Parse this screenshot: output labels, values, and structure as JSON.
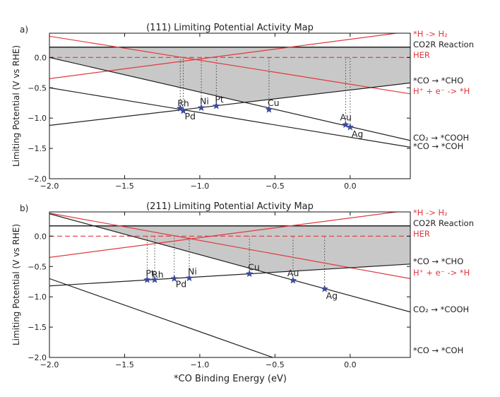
{
  "colors": {
    "shade": "#c8c8c8",
    "black_line": "#222222",
    "red_line": "#e0393e",
    "hull": "#333333",
    "star": "#3a4a9a",
    "dotted": "#444444",
    "text": "#222222"
  },
  "chart_data": [
    {
      "type": "line",
      "panel_label": "a)",
      "title": "(111) Limiting Potential Activity Map",
      "ylabel": "Limiting Potential (V vs RHE)",
      "xlabel": "",
      "xlim": [
        -2.0,
        0.4
      ],
      "ylim": [
        -2.0,
        0.4
      ],
      "xticks": [
        -2.0,
        -1.5,
        -1.0,
        -0.5,
        0.0
      ],
      "xtick_labels": [
        "−2.0",
        "−1.5",
        "−1.0",
        "−0.5",
        "0.0"
      ],
      "yticks": [
        -2.0,
        -1.5,
        -1.0,
        -0.5,
        0.0
      ],
      "ytick_labels": [
        "−2.0",
        "−1.5",
        "−1.0",
        "−0.5",
        "0.0"
      ],
      "grid": false,
      "legend": "right-side line labels",
      "series": [
        {
          "name": "CO2R Reaction",
          "x": [
            -2.0,
            0.4
          ],
          "values": [
            0.17,
            0.17
          ],
          "color": "black",
          "style": "solid"
        },
        {
          "name": "HER",
          "x": [
            -2.0,
            0.4
          ],
          "values": [
            0.0,
            0.0
          ],
          "color": "red",
          "style": "dashed"
        },
        {
          "name": "*H -> H₂",
          "x": [
            -2.0,
            0.4
          ],
          "values": [
            -0.35,
            0.43
          ],
          "color": "red",
          "style": "solid"
        },
        {
          "name": "H⁺ + e⁻ -> *H",
          "x": [
            -2.0,
            0.4
          ],
          "values": [
            0.35,
            -0.6
          ],
          "color": "red",
          "style": "solid"
        },
        {
          "name": "*CO → *CHO",
          "x": [
            -2.0,
            0.4
          ],
          "values": [
            -1.12,
            -0.42
          ],
          "color": "black",
          "style": "solid"
        },
        {
          "name": "CO₂ → *COOH",
          "x": [
            -2.0,
            0.4
          ],
          "values": [
            0.0,
            -1.37
          ],
          "color": "black",
          "style": "solid"
        },
        {
          "name": "*CO → *COH",
          "x": [
            -2.0,
            0.4
          ],
          "values": [
            -0.5,
            -1.48
          ],
          "color": "black",
          "style": "solid"
        }
      ],
      "points": [
        {
          "label": "Rh",
          "x": -1.13,
          "y": -0.84
        },
        {
          "label": "Pd",
          "x": -1.11,
          "y": -0.88
        },
        {
          "label": "Ni",
          "x": -0.99,
          "y": -0.83
        },
        {
          "label": "Pt",
          "x": -0.89,
          "y": -0.8
        },
        {
          "label": "Cu",
          "x": -0.54,
          "y": -0.86
        },
        {
          "label": "Au",
          "x": -0.03,
          "y": -1.11
        },
        {
          "label": "Ag",
          "x": 0.0,
          "y": -1.15
        }
      ],
      "right_labels": [
        "*H -> H₂",
        "CO2R Reaction",
        "HER",
        "*CO → *CHO",
        "H⁺ + e⁻ -> *H",
        "CO₂ → *COOH",
        "*CO → *COH"
      ]
    },
    {
      "type": "line",
      "panel_label": "b)",
      "title": "(211) Limiting Potential Activity Map",
      "ylabel": "Limiting Potential (V vs RHE)",
      "xlabel": "*CO Binding Energy (eV)",
      "xlim": [
        -2.0,
        0.4
      ],
      "ylim": [
        -2.0,
        0.4
      ],
      "xticks": [
        -2.0,
        -1.5,
        -1.0,
        -0.5,
        0.0
      ],
      "xtick_labels": [
        "−2.0",
        "−1.5",
        "−1.0",
        "−0.5",
        "0.0"
      ],
      "yticks": [
        -2.0,
        -1.5,
        -1.0,
        -0.5,
        0.0
      ],
      "ytick_labels": [
        "−2.0",
        "−1.5",
        "−1.0",
        "−0.5",
        "0.0"
      ],
      "grid": false,
      "legend": "right-side line labels",
      "series": [
        {
          "name": "CO2R Reaction",
          "x": [
            -2.0,
            0.4
          ],
          "values": [
            0.17,
            0.17
          ],
          "color": "black",
          "style": "solid"
        },
        {
          "name": "HER",
          "x": [
            -2.0,
            0.4
          ],
          "values": [
            0.0,
            0.0
          ],
          "color": "red",
          "style": "dashed"
        },
        {
          "name": "*H -> H₂",
          "x": [
            -2.0,
            0.4
          ],
          "values": [
            -0.35,
            0.43
          ],
          "color": "red",
          "style": "solid"
        },
        {
          "name": "H⁺ + e⁻ -> *H",
          "x": [
            -2.0,
            0.4
          ],
          "values": [
            0.38,
            -0.7
          ],
          "color": "red",
          "style": "solid"
        },
        {
          "name": "*CO → *CHO",
          "x": [
            -2.0,
            0.4
          ],
          "values": [
            -0.82,
            -0.46
          ],
          "color": "black",
          "style": "solid"
        },
        {
          "name": "CO₂ → *COOH",
          "x": [
            -2.0,
            0.4
          ],
          "values": [
            0.37,
            -1.25
          ],
          "color": "black",
          "style": "solid"
        },
        {
          "name": "*CO → *COH",
          "x": [
            -2.0,
            0.4
          ],
          "values": [
            -0.7,
            -2.8
          ],
          "color": "black",
          "style": "solid"
        }
      ],
      "points": [
        {
          "label": "Pt",
          "x": -1.35,
          "y": -0.72
        },
        {
          "label": "Rh",
          "x": -1.3,
          "y": -0.72
        },
        {
          "label": "Pd",
          "x": -1.17,
          "y": -0.7
        },
        {
          "label": "Ni",
          "x": -1.07,
          "y": -0.69
        },
        {
          "label": "Cu",
          "x": -0.67,
          "y": -0.62
        },
        {
          "label": "Au",
          "x": -0.38,
          "y": -0.73
        },
        {
          "label": "Ag",
          "x": -0.17,
          "y": -0.87
        }
      ],
      "right_labels": [
        "*H -> H₂",
        "CO2R Reaction",
        "HER",
        "*CO → *CHO",
        "H⁺ + e⁻ -> *H",
        "CO₂ → *COOH",
        "*CO → *COH"
      ]
    }
  ]
}
